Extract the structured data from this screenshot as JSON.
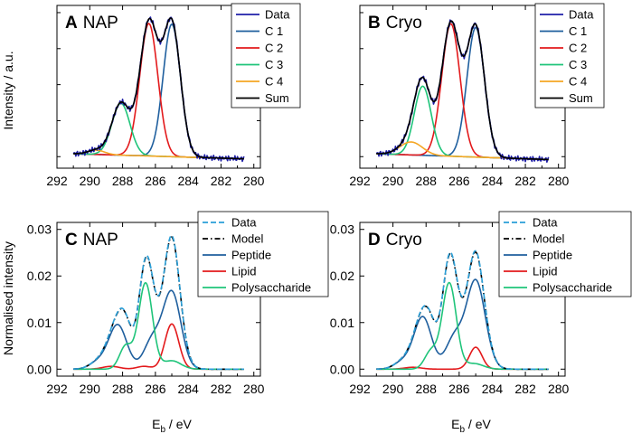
{
  "figure": {
    "ylabel_top": "Intensity / a.u.",
    "ylabel_bottom": "Normalised intensity",
    "xlabel_base": "E",
    "xlabel_sub": "b",
    "xlabel_unit": " / eV"
  },
  "chart_data": [
    {
      "panel": "A",
      "type": "line",
      "letter": "A",
      "title": "NAP",
      "xlim": [
        292,
        279.6
      ],
      "xticks": [
        "292",
        "290",
        "288",
        "286",
        "284",
        "282",
        "280"
      ],
      "ylim": [
        -0.08,
        1.05
      ],
      "yticks": [],
      "legend": [
        {
          "label": "Data",
          "color": "#1f1fa8",
          "dash": "solid"
        },
        {
          "label": "C 1",
          "color": "#1f5f9e",
          "dash": "solid"
        },
        {
          "label": "C 2",
          "color": "#e31a1c",
          "dash": "solid"
        },
        {
          "label": "C 3",
          "color": "#1fc47a",
          "dash": "solid"
        },
        {
          "label": "C 4",
          "color": "#f5a623",
          "dash": "solid"
        },
        {
          "label": "Sum",
          "color": "#000000",
          "dash": "solid"
        }
      ],
      "series": [
        {
          "name": "C 1",
          "color": "#1f5f9e",
          "peak": {
            "center": 285.0,
            "amp": 0.92,
            "fwhm": 1.25
          },
          "baseline": "c4"
        },
        {
          "name": "C 2",
          "color": "#e31a1c",
          "peak": {
            "center": 286.4,
            "amp": 0.92,
            "fwhm": 1.3
          },
          "baseline": "c4"
        },
        {
          "name": "C 3",
          "color": "#1fc47a",
          "peak": {
            "center": 288.1,
            "amp": 0.36,
            "fwhm": 1.3
          },
          "baseline": "c4"
        },
        {
          "name": "C 4",
          "color": "#f5a623",
          "peak": {
            "center": 289.6,
            "amp": 0.03,
            "fwhm": 1.2
          },
          "baseline": "c4"
        },
        {
          "name": "Sum",
          "color": "#000000",
          "peak": null,
          "baseline": "sum"
        },
        {
          "name": "Data",
          "color": "#1f1fa8",
          "peak": null,
          "baseline": "data"
        }
      ],
      "c4_baseline": {
        "left": 0.02,
        "right": -0.015
      }
    },
    {
      "panel": "B",
      "type": "line",
      "letter": "B",
      "title": "Cryo",
      "xlim": [
        292,
        279.6
      ],
      "xticks": [
        "292",
        "290",
        "288",
        "286",
        "284",
        "282",
        "280"
      ],
      "ylim": [
        -0.08,
        1.05
      ],
      "yticks": [],
      "legend": [
        {
          "label": "Data",
          "color": "#1f1fa8",
          "dash": "solid"
        },
        {
          "label": "C 1",
          "color": "#1f5f9e",
          "dash": "solid"
        },
        {
          "label": "C 2",
          "color": "#e31a1c",
          "dash": "solid"
        },
        {
          "label": "C 3",
          "color": "#1fc47a",
          "dash": "solid"
        },
        {
          "label": "C 4",
          "color": "#f5a623",
          "dash": "solid"
        },
        {
          "label": "Sum",
          "color": "#000000",
          "dash": "solid"
        }
      ],
      "series": [
        {
          "name": "C 1",
          "color": "#1f5f9e",
          "peak": {
            "center": 285.0,
            "amp": 0.9,
            "fwhm": 1.25
          },
          "baseline": "c4"
        },
        {
          "name": "C 2",
          "color": "#e31a1c",
          "peak": {
            "center": 286.5,
            "amp": 0.92,
            "fwhm": 1.3
          },
          "baseline": "c4"
        },
        {
          "name": "C 3",
          "color": "#1fc47a",
          "peak": {
            "center": 288.2,
            "amp": 0.48,
            "fwhm": 1.2
          },
          "baseline": "c4"
        },
        {
          "name": "C 4",
          "color": "#f5a623",
          "peak": {
            "center": 288.9,
            "amp": 0.09,
            "fwhm": 1.6
          },
          "baseline": "c4"
        },
        {
          "name": "Sum",
          "color": "#000000",
          "peak": null,
          "baseline": "sum"
        },
        {
          "name": "Data",
          "color": "#1f1fa8",
          "peak": null,
          "baseline": "data"
        }
      ],
      "c4_baseline": {
        "left": 0.02,
        "right": -0.02
      }
    },
    {
      "panel": "C",
      "type": "line",
      "letter": "C",
      "title": "NAP",
      "xlim": [
        292,
        279.6
      ],
      "xticks": [
        "292",
        "290",
        "288",
        "286",
        "284",
        "282",
        "280"
      ],
      "ylim": [
        -0.0015,
        0.0315
      ],
      "yticks": [
        "0.00",
        "0.01",
        "0.02",
        "0.03"
      ],
      "ytick_values": [
        0,
        0.01,
        0.02,
        0.03
      ],
      "legend": [
        {
          "label": "Data",
          "color": "#2a9fd8",
          "dash": "dash"
        },
        {
          "label": "Model",
          "color": "#000000",
          "dash": "dashdot"
        },
        {
          "label": "Peptide",
          "color": "#1f5f9e",
          "dash": "solid"
        },
        {
          "label": "Lipid",
          "color": "#e31a1c",
          "dash": "solid"
        },
        {
          "label": "Polysaccharide",
          "color": "#1fc47a",
          "dash": "solid"
        }
      ],
      "series": [
        {
          "name": "Peptide",
          "color": "#1f5f9e",
          "peaks": [
            {
              "center": 285.0,
              "amp": 0.0165,
              "fwhm": 1.3
            },
            {
              "center": 286.2,
              "amp": 0.006,
              "fwhm": 1.2
            },
            {
              "center": 288.3,
              "amp": 0.0095,
              "fwhm": 1.3
            },
            {
              "center": 289.5,
              "amp": 0.0015,
              "fwhm": 1.2
            }
          ]
        },
        {
          "name": "Lipid",
          "color": "#e31a1c",
          "peaks": [
            {
              "center": 285.0,
              "amp": 0.0097,
              "fwhm": 1.0
            },
            {
              "center": 286.7,
              "amp": 0.0006,
              "fwhm": 1.0
            },
            {
              "center": 288.7,
              "amp": 0.0006,
              "fwhm": 1.2
            }
          ]
        },
        {
          "name": "Polysaccharide",
          "color": "#1fc47a",
          "peaks": [
            {
              "center": 286.6,
              "amp": 0.0185,
              "fwhm": 1.0
            },
            {
              "center": 287.8,
              "amp": 0.005,
              "fwhm": 0.9
            },
            {
              "center": 285.0,
              "amp": 0.0018,
              "fwhm": 1.3
            }
          ]
        },
        {
          "name": "Model",
          "color": "#000000",
          "peaks": null
        },
        {
          "name": "Data",
          "color": "#2a9fd8",
          "peaks": null
        }
      ]
    },
    {
      "panel": "D",
      "type": "line",
      "letter": "D",
      "title": "Cryo",
      "xlim": [
        292,
        279.6
      ],
      "xticks": [
        "292",
        "290",
        "288",
        "286",
        "284",
        "282",
        "280"
      ],
      "ylim": [
        -0.0015,
        0.0315
      ],
      "yticks": [
        "0.00",
        "0.01",
        "0.02",
        "0.03"
      ],
      "ytick_values": [
        0,
        0.01,
        0.02,
        0.03
      ],
      "legend": [
        {
          "label": "Data",
          "color": "#2a9fd8",
          "dash": "dash"
        },
        {
          "label": "Model",
          "color": "#000000",
          "dash": "dashdot"
        },
        {
          "label": "Peptide",
          "color": "#1f5f9e",
          "dash": "solid"
        },
        {
          "label": "Lipid",
          "color": "#e31a1c",
          "dash": "solid"
        },
        {
          "label": "Polysaccharide",
          "color": "#1fc47a",
          "dash": "solid"
        }
      ],
      "series": [
        {
          "name": "Peptide",
          "color": "#1f5f9e",
          "peaks": [
            {
              "center": 285.0,
              "amp": 0.019,
              "fwhm": 1.35
            },
            {
              "center": 286.3,
              "amp": 0.0065,
              "fwhm": 1.2
            },
            {
              "center": 288.2,
              "amp": 0.0112,
              "fwhm": 1.25
            },
            {
              "center": 289.4,
              "amp": 0.0016,
              "fwhm": 1.2
            }
          ]
        },
        {
          "name": "Lipid",
          "color": "#e31a1c",
          "peaks": [
            {
              "center": 285.0,
              "amp": 0.0047,
              "fwhm": 0.9
            },
            {
              "center": 288.8,
              "amp": 0.0004,
              "fwhm": 1.2
            }
          ]
        },
        {
          "name": "Polysaccharide",
          "color": "#1fc47a",
          "peaks": [
            {
              "center": 286.6,
              "amp": 0.0185,
              "fwhm": 1.0
            },
            {
              "center": 287.7,
              "amp": 0.0038,
              "fwhm": 0.9
            },
            {
              "center": 285.1,
              "amp": 0.0012,
              "fwhm": 1.3
            }
          ]
        },
        {
          "name": "Model",
          "color": "#000000",
          "peaks": null
        },
        {
          "name": "Data",
          "color": "#2a9fd8",
          "peaks": null
        }
      ]
    }
  ]
}
